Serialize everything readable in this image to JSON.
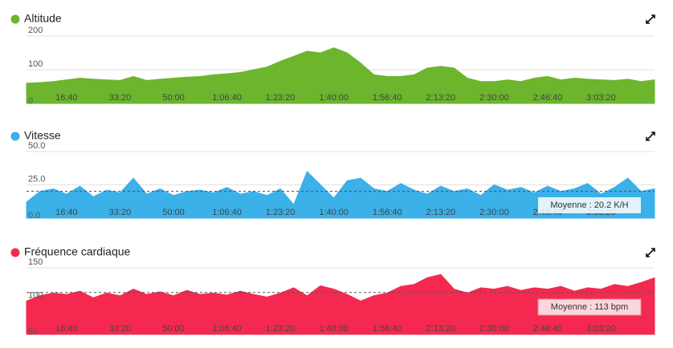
{
  "chart_data": [
    {
      "type": "area",
      "title": "Altitude",
      "color": "#6cb52d",
      "x": [
        250,
        500,
        750,
        1000,
        1250,
        1500,
        1750,
        2000,
        2250,
        2500,
        2750,
        3000,
        3250,
        3500,
        3750,
        4000,
        4250,
        4500,
        4750,
        5000,
        5250,
        5500,
        5750,
        6000,
        6250,
        6500,
        6750,
        7000,
        7250,
        7500,
        7750,
        8000,
        8250,
        8500,
        8750,
        9000,
        9250,
        9500,
        9750,
        10000,
        10250,
        10500,
        10750,
        11000,
        11250,
        11500,
        11750,
        12000
      ],
      "values": [
        60,
        62,
        65,
        70,
        75,
        72,
        70,
        68,
        80,
        68,
        72,
        75,
        78,
        80,
        85,
        88,
        92,
        100,
        108,
        125,
        140,
        155,
        150,
        165,
        150,
        120,
        85,
        80,
        80,
        85,
        105,
        110,
        105,
        75,
        65,
        65,
        70,
        65,
        75,
        80,
        70,
        75,
        72,
        70,
        68,
        72,
        65,
        70
      ],
      "xlim": [
        250,
        12000
      ],
      "xticks": [
        {
          "value": 1000,
          "label": "16:40"
        },
        {
          "value": 2000,
          "label": "33:20"
        },
        {
          "value": 3000,
          "label": "50:00"
        },
        {
          "value": 4000,
          "label": "1:06:40"
        },
        {
          "value": 5000,
          "label": "1:23:20"
        },
        {
          "value": 6000,
          "label": "1:40:00"
        },
        {
          "value": 7000,
          "label": "1:56:40"
        },
        {
          "value": 8000,
          "label": "2:13:20"
        },
        {
          "value": 9000,
          "label": "2:30:00"
        },
        {
          "value": 10000,
          "label": "2:46:40"
        },
        {
          "value": 11000,
          "label": "3:03:20"
        }
      ],
      "ylim": [
        0,
        200
      ],
      "yticks": [
        0,
        100,
        200
      ],
      "grid": true
    },
    {
      "type": "area",
      "title": "Vitesse",
      "color": "#3bb0e9",
      "x": [
        250,
        500,
        750,
        1000,
        1250,
        1500,
        1750,
        2000,
        2250,
        2500,
        2750,
        3000,
        3250,
        3500,
        3750,
        4000,
        4250,
        4500,
        4750,
        5000,
        5250,
        5500,
        5750,
        6000,
        6250,
        6500,
        6750,
        7000,
        7250,
        7500,
        7750,
        8000,
        8250,
        8500,
        8750,
        9000,
        9250,
        9500,
        9750,
        10000,
        10250,
        10500,
        10750,
        11000,
        11250,
        11500,
        11750,
        12000
      ],
      "values": [
        12,
        20,
        22,
        18,
        24,
        16,
        21,
        19,
        30,
        18,
        22,
        17,
        20,
        21,
        19,
        23,
        18,
        20,
        17,
        22,
        10,
        35,
        25,
        15,
        28,
        30,
        22,
        20,
        26,
        21,
        18,
        24,
        20,
        22,
        17,
        25,
        21,
        23,
        19,
        24,
        20,
        22,
        26,
        18,
        23,
        30,
        20,
        22
      ],
      "xlim": [
        250,
        12000
      ],
      "xticks": [
        {
          "value": 1000,
          "label": "16:40"
        },
        {
          "value": 2000,
          "label": "33:20"
        },
        {
          "value": 3000,
          "label": "50:00"
        },
        {
          "value": 4000,
          "label": "1:06:40"
        },
        {
          "value": 5000,
          "label": "1:23:20"
        },
        {
          "value": 6000,
          "label": "1:40:00"
        },
        {
          "value": 7000,
          "label": "1:56:40"
        },
        {
          "value": 8000,
          "label": "2:13:20"
        },
        {
          "value": 9000,
          "label": "2:30:00"
        },
        {
          "value": 10000,
          "label": "2:46:40"
        },
        {
          "value": 11000,
          "label": "3:03:20"
        }
      ],
      "ylim": [
        0,
        50
      ],
      "yticks": [
        {
          "value": 0,
          "label": "0.0"
        },
        {
          "value": 25,
          "label": "25.0"
        },
        {
          "value": 50,
          "label": "50.0"
        }
      ],
      "grid": true,
      "average": 20.2,
      "average_label": "Moyenne : 20.2 K/H"
    },
    {
      "type": "area",
      "title": "Fréquence cardiaque",
      "color": "#f5294f",
      "x": [
        250,
        500,
        750,
        1000,
        1250,
        1500,
        1750,
        2000,
        2250,
        2500,
        2750,
        3000,
        3250,
        3500,
        3750,
        4000,
        4250,
        4500,
        4750,
        5000,
        5250,
        5500,
        5750,
        6000,
        6250,
        6500,
        6750,
        7000,
        7250,
        7500,
        7750,
        8000,
        8250,
        8500,
        8750,
        9000,
        9250,
        9500,
        9750,
        10000,
        10250,
        10500,
        10750,
        11000,
        11250,
        11500,
        11750,
        12000
      ],
      "values": [
        100,
        108,
        112,
        110,
        115,
        105,
        112,
        108,
        118,
        110,
        114,
        108,
        116,
        110,
        112,
        109,
        115,
        110,
        106,
        112,
        120,
        108,
        123,
        118,
        110,
        100,
        108,
        112,
        122,
        125,
        135,
        140,
        118,
        112,
        120,
        118,
        122,
        116,
        120,
        118,
        122,
        115,
        120,
        118,
        125,
        122,
        128,
        135
      ],
      "xlim": [
        250,
        12000
      ],
      "xticks": [
        {
          "value": 1000,
          "label": "16:40"
        },
        {
          "value": 2000,
          "label": "33:20"
        },
        {
          "value": 3000,
          "label": "50:00"
        },
        {
          "value": 4000,
          "label": "1:06:40"
        },
        {
          "value": 5000,
          "label": "1:23:20"
        },
        {
          "value": 6000,
          "label": "1:40:00"
        },
        {
          "value": 7000,
          "label": "1:56:40"
        },
        {
          "value": 8000,
          "label": "2:13:20"
        },
        {
          "value": 9000,
          "label": "2:30:00"
        },
        {
          "value": 10000,
          "label": "2:46:40"
        },
        {
          "value": 11000,
          "label": "3:03:20"
        }
      ],
      "ylim": [
        50,
        150
      ],
      "yticks": [
        50,
        100,
        150
      ],
      "grid": true,
      "average": 113,
      "average_label": "Moyenne : 113 bpm"
    }
  ]
}
